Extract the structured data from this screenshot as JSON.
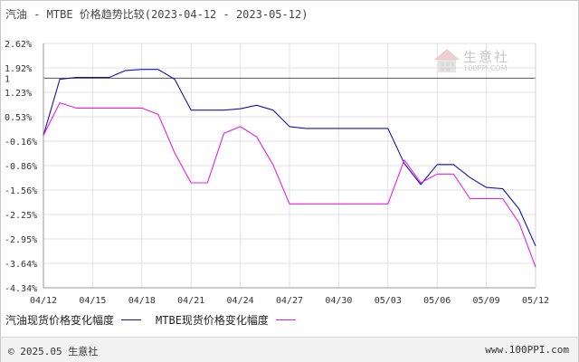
{
  "title": "汽油 - MTBE 价格趋势比较(2023-04-12 - 2023-05-12)",
  "chart_data": {
    "type": "line",
    "x": [
      "04/12",
      "04/13",
      "04/14",
      "04/15",
      "04/16",
      "04/17",
      "04/18",
      "04/19",
      "04/20",
      "04/21",
      "04/22",
      "04/23",
      "04/24",
      "04/25",
      "04/26",
      "04/27",
      "04/28",
      "04/29",
      "04/30",
      "05/01",
      "05/02",
      "05/03",
      "05/04",
      "05/05",
      "05/06",
      "05/07",
      "05/08",
      "05/09",
      "05/10",
      "05/11",
      "05/12"
    ],
    "xticks": [
      "04/12",
      "04/15",
      "04/18",
      "04/21",
      "04/24",
      "04/27",
      "04/30",
      "05/03",
      "05/06",
      "05/09",
      "05/12"
    ],
    "yticks": [
      "2.62%",
      "1.92%",
      "1.23%",
      "0.53%",
      "-0.16%",
      "-0.86%",
      "-1.56%",
      "-2.25%",
      "-2.95%",
      "-3.64%",
      "-4.34%"
    ],
    "ylim": [
      -4.34,
      2.62
    ],
    "ref_line": {
      "value": 1.63,
      "label": "1"
    },
    "grid": true,
    "series": [
      {
        "name": "汽油现货价格变化幅度",
        "color": "#1414a8",
        "values": [
          0,
          1.6,
          1.65,
          1.65,
          1.65,
          1.85,
          1.88,
          1.88,
          1.6,
          0.72,
          0.72,
          0.72,
          0.76,
          0.86,
          0.72,
          0.25,
          0.2,
          0.2,
          0.2,
          0.2,
          0.2,
          0.2,
          -0.8,
          -1.4,
          -0.83,
          -0.83,
          -1.2,
          -1.48,
          -1.52,
          -2.1,
          -3.15
        ]
      },
      {
        "name": "MTBE现货价格变化幅度",
        "color": "#e81ee8",
        "values": [
          0,
          0.93,
          0.78,
          0.78,
          0.78,
          0.78,
          0.78,
          0.6,
          -0.5,
          -1.35,
          -1.35,
          0.06,
          0.25,
          -0.04,
          -0.84,
          -1.95,
          -1.95,
          -1.95,
          -1.95,
          -1.95,
          -1.95,
          -1.95,
          -0.7,
          -1.35,
          -1.1,
          -1.1,
          -1.8,
          -1.8,
          -1.8,
          -2.5,
          -3.75
        ]
      }
    ]
  },
  "legend": {
    "series1_label": "汽油现货价格变化幅度",
    "series2_label": "MTBE现货价格变化幅度"
  },
  "watermark": {
    "name": "生意社",
    "url": "100PPI.COM"
  },
  "footer": {
    "copyright": "© 2025.05 生意社",
    "website": "www.100PPI.com"
  }
}
